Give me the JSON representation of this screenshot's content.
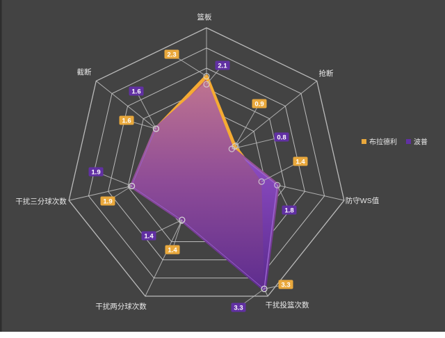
{
  "page": {
    "background_color": "#434343",
    "bottom_strip_color": "#ffffff",
    "left_edge_color": "#2e2e2e"
  },
  "chart_data": {
    "type": "radar",
    "title": "",
    "categories": [
      "篮板",
      "抢断",
      "防守WS值",
      "干扰投篮次数",
      "干扰两分球次数",
      "干扰三分球次数",
      "截断"
    ],
    "series": [
      {
        "name": "布拉德利",
        "values": [
          2.3,
          0.9,
          1.4,
          3.3,
          1.4,
          1.9,
          1.6
        ],
        "stroke_color": "#F5AB33",
        "fill_color": "#B55F74",
        "label_bg": "#E9A83C"
      },
      {
        "name": "波普",
        "values": [
          2.1,
          0.8,
          1.8,
          3.3,
          1.4,
          1.9,
          1.6
        ],
        "stroke_color": "#9A63CF",
        "fill_gradient_top": "#C4788F",
        "fill_gradient_mid": "#8E4C97",
        "fill_gradient_bottom": "#5C2B8F",
        "extra_gradient_top": "#8B4BC2",
        "extra_gradient_bottom": "#57288C",
        "label_bg": "#6130A3"
      }
    ],
    "axis_range": [
      0,
      3.5
    ],
    "ring_count": 7,
    "grid": "on",
    "grid_color": "#C9C9C9",
    "axis_label_color": "#E9E9E9",
    "value_label_text_color": "#FFFFFF",
    "leader_line_color": "#BBBBBB",
    "legend_position": "right-middle",
    "value_labels_shown": true
  }
}
